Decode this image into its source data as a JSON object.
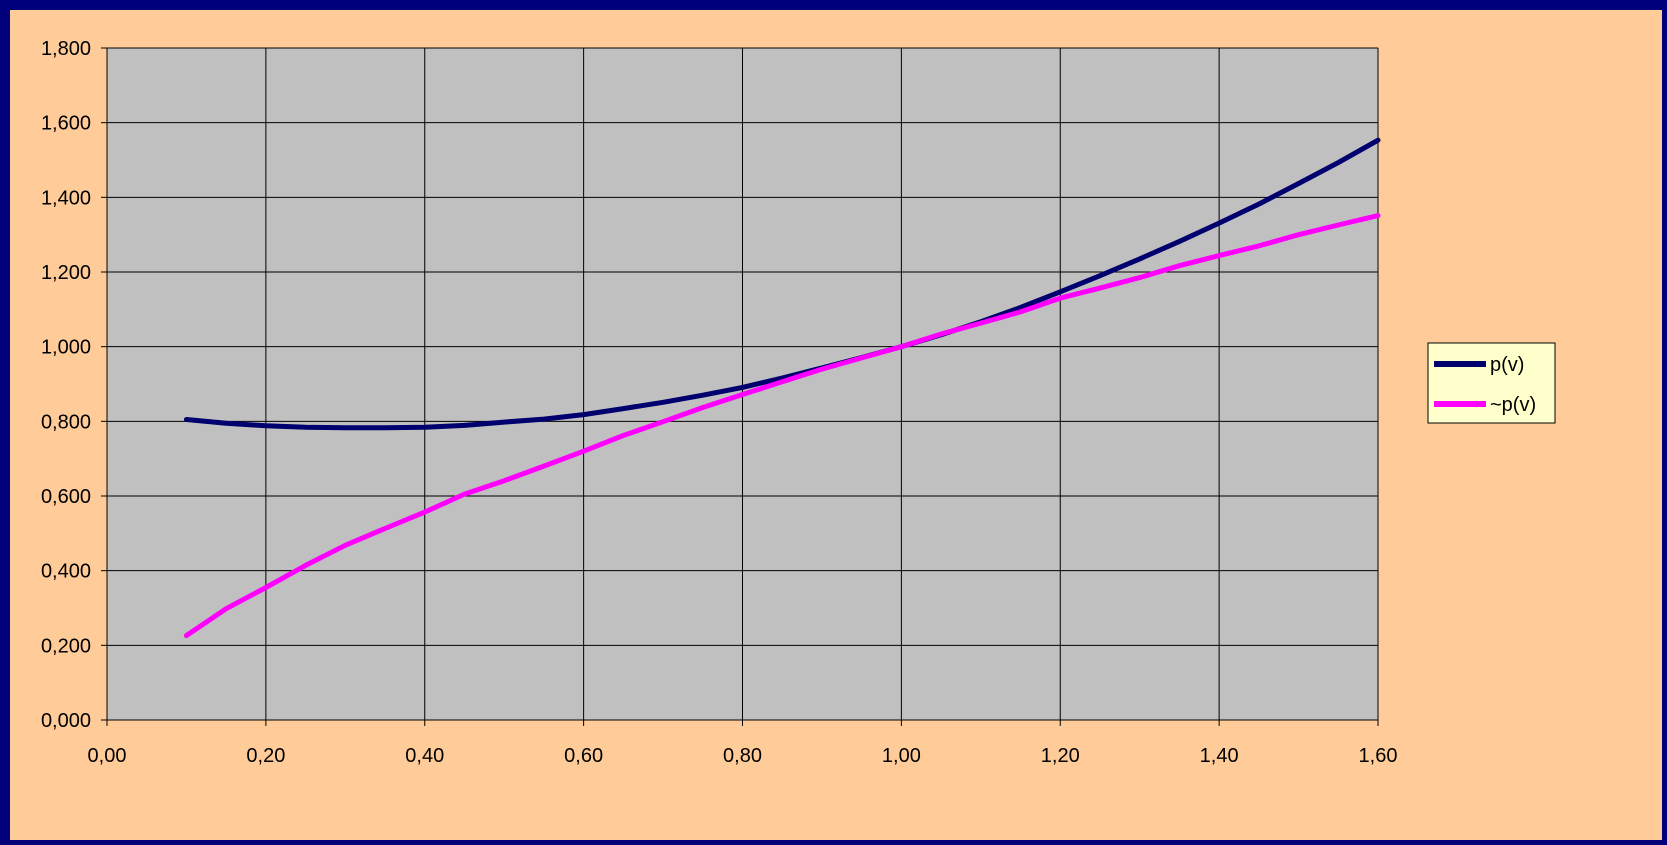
{
  "chart_data": {
    "type": "line",
    "title": "",
    "xlabel": "",
    "ylabel": "",
    "xlim": [
      0.0,
      1.6
    ],
    "ylim": [
      0.0,
      1.8
    ],
    "x_ticks": [
      "0,00",
      "0,20",
      "0,40",
      "0,60",
      "0,80",
      "1,00",
      "1,20",
      "1,40",
      "1,60"
    ],
    "y_ticks": [
      "0,000",
      "0,200",
      "0,400",
      "0,600",
      "0,800",
      "1,000",
      "1,200",
      "1,400",
      "1,600",
      "1,800"
    ],
    "x_tick_values": [
      0.0,
      0.2,
      0.4,
      0.6,
      0.8,
      1.0,
      1.2,
      1.4,
      1.6
    ],
    "y_tick_values": [
      0.0,
      0.2,
      0.4,
      0.6,
      0.8,
      1.0,
      1.2,
      1.4,
      1.6,
      1.8
    ],
    "grid": true,
    "legend_position": "right",
    "plot_background": "#c0c0c0",
    "figure_background": "#ffcc99",
    "border_color": "#00007a",
    "series": [
      {
        "name": "p(v)",
        "color": "#00006e",
        "x": [
          0.1,
          0.15,
          0.2,
          0.25,
          0.3,
          0.35,
          0.4,
          0.45,
          0.5,
          0.55,
          0.6,
          0.65,
          0.7,
          0.75,
          0.8,
          0.85,
          0.9,
          0.95,
          1.0,
          1.05,
          1.1,
          1.15,
          1.2,
          1.25,
          1.3,
          1.35,
          1.4,
          1.45,
          1.5,
          1.55,
          1.6
        ],
        "y": [
          0.805,
          0.795,
          0.788,
          0.784,
          0.783,
          0.783,
          0.784,
          0.789,
          0.798,
          0.806,
          0.818,
          0.834,
          0.851,
          0.87,
          0.891,
          0.916,
          0.943,
          0.971,
          1.0,
          1.032,
          1.067,
          1.105,
          1.147,
          1.19,
          1.235,
          1.282,
          1.331,
          1.382,
          1.437,
          1.493,
          1.553
        ]
      },
      {
        "name": "~p(v)",
        "color": "#ff00ff",
        "x": [
          0.1,
          0.15,
          0.2,
          0.25,
          0.3,
          0.35,
          0.4,
          0.45,
          0.5,
          0.55,
          0.6,
          0.65,
          0.7,
          0.75,
          0.8,
          0.85,
          0.9,
          0.95,
          1.0,
          1.05,
          1.1,
          1.15,
          1.2,
          1.25,
          1.3,
          1.35,
          1.4,
          1.45,
          1.5,
          1.55,
          1.6
        ],
        "y": [
          0.226,
          0.298,
          0.355,
          0.414,
          0.468,
          0.513,
          0.557,
          0.605,
          0.641,
          0.68,
          0.72,
          0.762,
          0.799,
          0.837,
          0.872,
          0.906,
          0.94,
          0.97,
          1.0,
          1.034,
          1.063,
          1.093,
          1.13,
          1.157,
          1.185,
          1.217,
          1.244,
          1.27,
          1.3,
          1.326,
          1.351
        ]
      }
    ]
  }
}
